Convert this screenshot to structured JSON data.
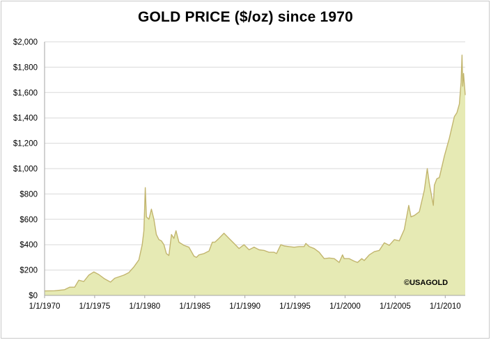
{
  "chart_data": {
    "type": "area",
    "title": "GOLD PRICE ($/oz) since 1970",
    "xlabel": "",
    "ylabel": "",
    "ylim": [
      0,
      2000
    ],
    "xlim": [
      "1970-01-01",
      "2011-12-31"
    ],
    "grid": "horizontal",
    "legend": "none",
    "y_ticks": [
      {
        "value": 0,
        "label": "$0"
      },
      {
        "value": 200,
        "label": "$200"
      },
      {
        "value": 400,
        "label": "$400"
      },
      {
        "value": 600,
        "label": "$600"
      },
      {
        "value": 800,
        "label": "$800"
      },
      {
        "value": 1000,
        "label": "$1,000"
      },
      {
        "value": 1200,
        "label": "$1,200"
      },
      {
        "value": 1400,
        "label": "$1,400"
      },
      {
        "value": 1600,
        "label": "$1,600"
      },
      {
        "value": 1800,
        "label": "$1,800"
      },
      {
        "value": 2000,
        "label": "$2,000"
      }
    ],
    "x_ticks": [
      {
        "value": "1970-01-01",
        "label": "1/1/1970"
      },
      {
        "value": "1975-01-01",
        "label": "1/1/1975"
      },
      {
        "value": "1980-01-01",
        "label": "1/1/1980"
      },
      {
        "value": "1985-01-01",
        "label": "1/1/1985"
      },
      {
        "value": "1990-01-01",
        "label": "1/1/1990"
      },
      {
        "value": "1995-01-01",
        "label": "1/1/1995"
      },
      {
        "value": "2000-01-01",
        "label": "1/1/2000"
      },
      {
        "value": "2005-01-01",
        "label": "1/1/2005"
      },
      {
        "value": "2010-01-01",
        "label": "1/1/2010"
      }
    ],
    "annotations": [
      {
        "text": "©USAGOLD",
        "position": "bottom-right"
      }
    ],
    "colors": {
      "area_fill": "#e6eab4",
      "area_line": "#c2b56e",
      "gridline": "#d9d9d9",
      "axis": "#a6a6a6"
    },
    "series": [
      {
        "x": [
          "1970-01-01",
          "1971-01-01",
          "1972-01-01",
          "1972-07-01",
          "1973-01-01",
          "1973-06-01",
          "1973-12-01",
          "1974-06-01",
          "1974-12-01",
          "1975-06-01",
          "1976-01-01",
          "1976-08-01",
          "1977-01-01",
          "1977-12-01",
          "1978-06-01",
          "1978-12-01",
          "1979-06-01",
          "1979-10-01",
          "1979-12-01",
          "1980-01-21",
          "1980-03-01",
          "1980-06-01",
          "1980-09-01",
          "1980-12-01",
          "1981-03-01",
          "1981-06-01",
          "1981-09-01",
          "1981-12-01",
          "1982-03-01",
          "1982-06-01",
          "1982-09-01",
          "1982-12-01",
          "1983-02-15",
          "1983-06-01",
          "1983-12-01",
          "1984-06-01",
          "1984-12-01",
          "1985-03-01",
          "1985-06-01",
          "1985-12-01",
          "1986-06-01",
          "1986-10-01",
          "1987-01-01",
          "1987-06-01",
          "1987-12-01",
          "1988-06-01",
          "1988-12-01",
          "1989-06-01",
          "1989-12-01",
          "1990-06-01",
          "1990-12-01",
          "1991-06-01",
          "1991-12-01",
          "1992-06-01",
          "1992-12-01",
          "1993-03-01",
          "1993-08-01",
          "1993-12-01",
          "1994-06-01",
          "1994-12-01",
          "1995-06-01",
          "1995-12-01",
          "1996-02-01",
          "1996-06-01",
          "1996-12-01",
          "1997-06-01",
          "1997-12-01",
          "1998-06-01",
          "1998-12-01",
          "1999-06-01",
          "1999-10-01",
          "1999-12-01",
          "2000-06-01",
          "2000-12-01",
          "2001-04-01",
          "2001-09-01",
          "2001-12-01",
          "2002-06-01",
          "2002-12-01",
          "2003-06-01",
          "2003-12-01",
          "2004-06-01",
          "2004-12-01",
          "2005-06-01",
          "2005-12-01",
          "2006-05-12",
          "2006-08-01",
          "2006-12-01",
          "2007-06-01",
          "2007-12-01",
          "2008-03-17",
          "2008-06-01",
          "2008-10-24",
          "2008-12-01",
          "2009-03-01",
          "2009-06-01",
          "2009-12-01",
          "2010-06-01",
          "2010-12-01",
          "2011-03-01",
          "2011-06-01",
          "2011-08-01",
          "2011-09-06",
          "2011-10-01",
          "2011-11-01",
          "2011-12-31"
        ],
        "values": [
          35,
          37,
          45,
          65,
          65,
          120,
          110,
          160,
          185,
          165,
          130,
          105,
          135,
          160,
          180,
          225,
          280,
          400,
          510,
          850,
          620,
          600,
          680,
          600,
          480,
          440,
          430,
          400,
          330,
          315,
          480,
          450,
          510,
          420,
          395,
          380,
          310,
          300,
          320,
          330,
          350,
          420,
          420,
          450,
          490,
          450,
          410,
          370,
          400,
          360,
          380,
          360,
          355,
          340,
          340,
          330,
          400,
          390,
          385,
          380,
          385,
          385,
          410,
          385,
          370,
          340,
          290,
          295,
          290,
          260,
          320,
          290,
          290,
          270,
          260,
          290,
          275,
          320,
          345,
          355,
          415,
          395,
          440,
          430,
          520,
          710,
          620,
          630,
          660,
          830,
          1000,
          880,
          710,
          870,
          920,
          930,
          1100,
          1240,
          1410,
          1440,
          1510,
          1680,
          1895,
          1650,
          1750,
          1580
        ]
      }
    ]
  }
}
